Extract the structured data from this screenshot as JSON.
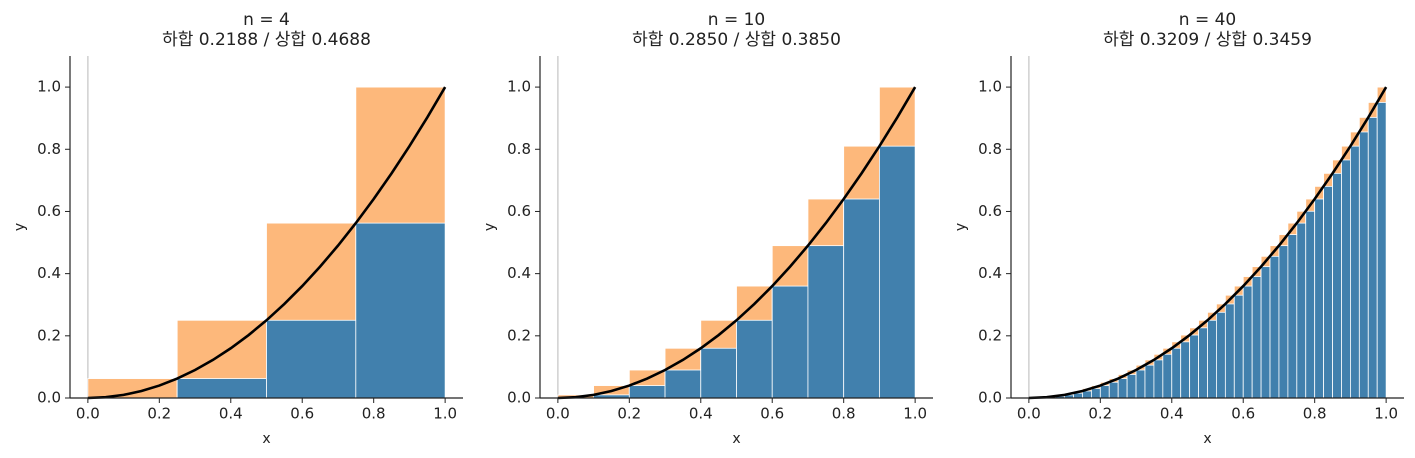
{
  "chart_data": [
    {
      "type": "histogram",
      "title": "n = 4",
      "subtitle": "하합 0.2188 / 상합 0.4688",
      "xlabel": "x",
      "ylabel": "y",
      "xlim": [
        -0.05,
        1.05
      ],
      "ylim": [
        0,
        1.1
      ],
      "xticks": [
        {
          "value": 0,
          "label": "0.0"
        },
        {
          "value": 0.2,
          "label": "0.2"
        },
        {
          "value": 0.4,
          "label": "0.4"
        },
        {
          "value": 0.6,
          "label": "0.6"
        },
        {
          "value": 0.8,
          "label": "0.8"
        },
        {
          "value": 1,
          "label": "1.0"
        }
      ],
      "yticks": [
        {
          "value": 0,
          "label": "0.0"
        },
        {
          "value": 0.2,
          "label": "0.2"
        },
        {
          "value": 0.4,
          "label": "0.4"
        },
        {
          "value": 0.6,
          "label": "0.6"
        },
        {
          "value": 0.8,
          "label": "0.8"
        },
        {
          "value": 1,
          "label": "1.0"
        }
      ],
      "bins": [
        0,
        0.25,
        0.5,
        0.75,
        1
      ],
      "series": [
        {
          "color": "#fdb87b",
          "values": [
            0.0625,
            0.25,
            0.5625,
            1
          ]
        },
        {
          "color": "#4180ad",
          "values": [
            0,
            0.0625,
            0.25,
            0.5625
          ]
        },
        {
          "type": "line",
          "color": "#000000",
          "x": [
            0,
            0.05,
            0.1,
            0.15,
            0.2,
            0.25,
            0.3,
            0.35,
            0.4,
            0.45,
            0.5,
            0.55,
            0.6,
            0.65,
            0.7,
            0.75,
            0.8,
            0.85,
            0.9,
            0.95,
            1
          ],
          "values": [
            0,
            0.0025,
            0.01,
            0.0225,
            0.04,
            0.0625,
            0.09,
            0.1225,
            0.16,
            0.2025,
            0.25,
            0.3025,
            0.36,
            0.4225,
            0.49,
            0.5625,
            0.64,
            0.7225,
            0.81,
            0.9025,
            1
          ]
        }
      ]
    },
    {
      "type": "histogram",
      "title": "n = 10",
      "subtitle": "하합 0.2850 / 상합 0.3850",
      "xlabel": "x",
      "ylabel": "y",
      "xlim": [
        -0.05,
        1.05
      ],
      "ylim": [
        0,
        1.1
      ],
      "xticks": [
        {
          "value": 0,
          "label": "0.0"
        },
        {
          "value": 0.2,
          "label": "0.2"
        },
        {
          "value": 0.4,
          "label": "0.4"
        },
        {
          "value": 0.6,
          "label": "0.6"
        },
        {
          "value": 0.8,
          "label": "0.8"
        },
        {
          "value": 1,
          "label": "1.0"
        }
      ],
      "yticks": [
        {
          "value": 0,
          "label": "0.0"
        },
        {
          "value": 0.2,
          "label": "0.2"
        },
        {
          "value": 0.4,
          "label": "0.4"
        },
        {
          "value": 0.6,
          "label": "0.6"
        },
        {
          "value": 0.8,
          "label": "0.8"
        },
        {
          "value": 1,
          "label": "1.0"
        }
      ],
      "bins": [
        0,
        0.1,
        0.2,
        0.3,
        0.4,
        0.5,
        0.6,
        0.7,
        0.8,
        0.9,
        1
      ],
      "series": [
        {
          "color": "#fdb87b",
          "values": [
            0.01,
            0.04,
            0.09,
            0.16,
            0.25,
            0.36,
            0.49,
            0.64,
            0.81,
            1
          ]
        },
        {
          "color": "#4180ad",
          "values": [
            0,
            0.01,
            0.04,
            0.09,
            0.16,
            0.25,
            0.36,
            0.49,
            0.64,
            0.81
          ]
        },
        {
          "type": "line",
          "color": "#000000",
          "x": [
            0,
            0.05,
            0.1,
            0.15,
            0.2,
            0.25,
            0.3,
            0.35,
            0.4,
            0.45,
            0.5,
            0.55,
            0.6,
            0.65,
            0.7,
            0.75,
            0.8,
            0.85,
            0.9,
            0.95,
            1
          ],
          "values": [
            0,
            0.0025,
            0.01,
            0.0225,
            0.04,
            0.0625,
            0.09,
            0.1225,
            0.16,
            0.2025,
            0.25,
            0.3025,
            0.36,
            0.4225,
            0.49,
            0.5625,
            0.64,
            0.7225,
            0.81,
            0.9025,
            1
          ]
        }
      ]
    },
    {
      "type": "histogram",
      "title": "n = 40",
      "subtitle": "하합 0.3209 / 상합 0.3459",
      "xlabel": "x",
      "ylabel": "y",
      "xlim": [
        -0.05,
        1.05
      ],
      "ylim": [
        0,
        1.1
      ],
      "xticks": [
        {
          "value": 0,
          "label": "0.0"
        },
        {
          "value": 0.2,
          "label": "0.2"
        },
        {
          "value": 0.4,
          "label": "0.4"
        },
        {
          "value": 0.6,
          "label": "0.6"
        },
        {
          "value": 0.8,
          "label": "0.8"
        },
        {
          "value": 1,
          "label": "1.0"
        }
      ],
      "yticks": [
        {
          "value": 0,
          "label": "0.0"
        },
        {
          "value": 0.2,
          "label": "0.2"
        },
        {
          "value": 0.4,
          "label": "0.4"
        },
        {
          "value": 0.6,
          "label": "0.6"
        },
        {
          "value": 0.8,
          "label": "0.8"
        },
        {
          "value": 1,
          "label": "1.0"
        }
      ],
      "bins": [
        0,
        0.025,
        0.05,
        0.075,
        0.1,
        0.125,
        0.15,
        0.175,
        0.2,
        0.225,
        0.25,
        0.275,
        0.3,
        0.325,
        0.35,
        0.375,
        0.4,
        0.425,
        0.45,
        0.475,
        0.5,
        0.525,
        0.55,
        0.575,
        0.6,
        0.625,
        0.65,
        0.675,
        0.7,
        0.725,
        0.75,
        0.775,
        0.8,
        0.825,
        0.85,
        0.875,
        0.9,
        0.925,
        0.95,
        0.975,
        1
      ],
      "series": [
        {
          "color": "#fdb87b",
          "values": [
            0.000625,
            0.0025,
            0.005625,
            0.01,
            0.015625,
            0.0225,
            0.030625,
            0.04,
            0.050625,
            0.0625,
            0.075625,
            0.09,
            0.105625,
            0.1225,
            0.140625,
            0.16,
            0.180625,
            0.2025,
            0.225625,
            0.25,
            0.275625,
            0.3025,
            0.330625,
            0.36,
            0.390625,
            0.4225,
            0.455625,
            0.49,
            0.525625,
            0.5625,
            0.600625,
            0.64,
            0.680625,
            0.7225,
            0.765625,
            0.81,
            0.855625,
            0.9025,
            0.950625,
            1
          ]
        },
        {
          "color": "#4180ad",
          "values": [
            0,
            0.000625,
            0.0025,
            0.005625,
            0.01,
            0.015625,
            0.0225,
            0.030625,
            0.04,
            0.050625,
            0.0625,
            0.075625,
            0.09,
            0.105625,
            0.1225,
            0.140625,
            0.16,
            0.180625,
            0.2025,
            0.225625,
            0.25,
            0.275625,
            0.3025,
            0.330625,
            0.36,
            0.390625,
            0.4225,
            0.455625,
            0.49,
            0.525625,
            0.5625,
            0.600625,
            0.64,
            0.680625,
            0.7225,
            0.765625,
            0.81,
            0.855625,
            0.9025,
            0.950625
          ]
        },
        {
          "type": "line",
          "color": "#000000",
          "x": [
            0,
            0.05,
            0.1,
            0.15,
            0.2,
            0.25,
            0.3,
            0.35,
            0.4,
            0.45,
            0.5,
            0.55,
            0.6,
            0.65,
            0.7,
            0.75,
            0.8,
            0.85,
            0.9,
            0.95,
            1
          ],
          "values": [
            0,
            0.0025,
            0.01,
            0.0225,
            0.04,
            0.0625,
            0.09,
            0.1225,
            0.16,
            0.2025,
            0.25,
            0.3025,
            0.36,
            0.4225,
            0.49,
            0.5625,
            0.64,
            0.7225,
            0.81,
            0.9025,
            1
          ]
        }
      ]
    }
  ]
}
